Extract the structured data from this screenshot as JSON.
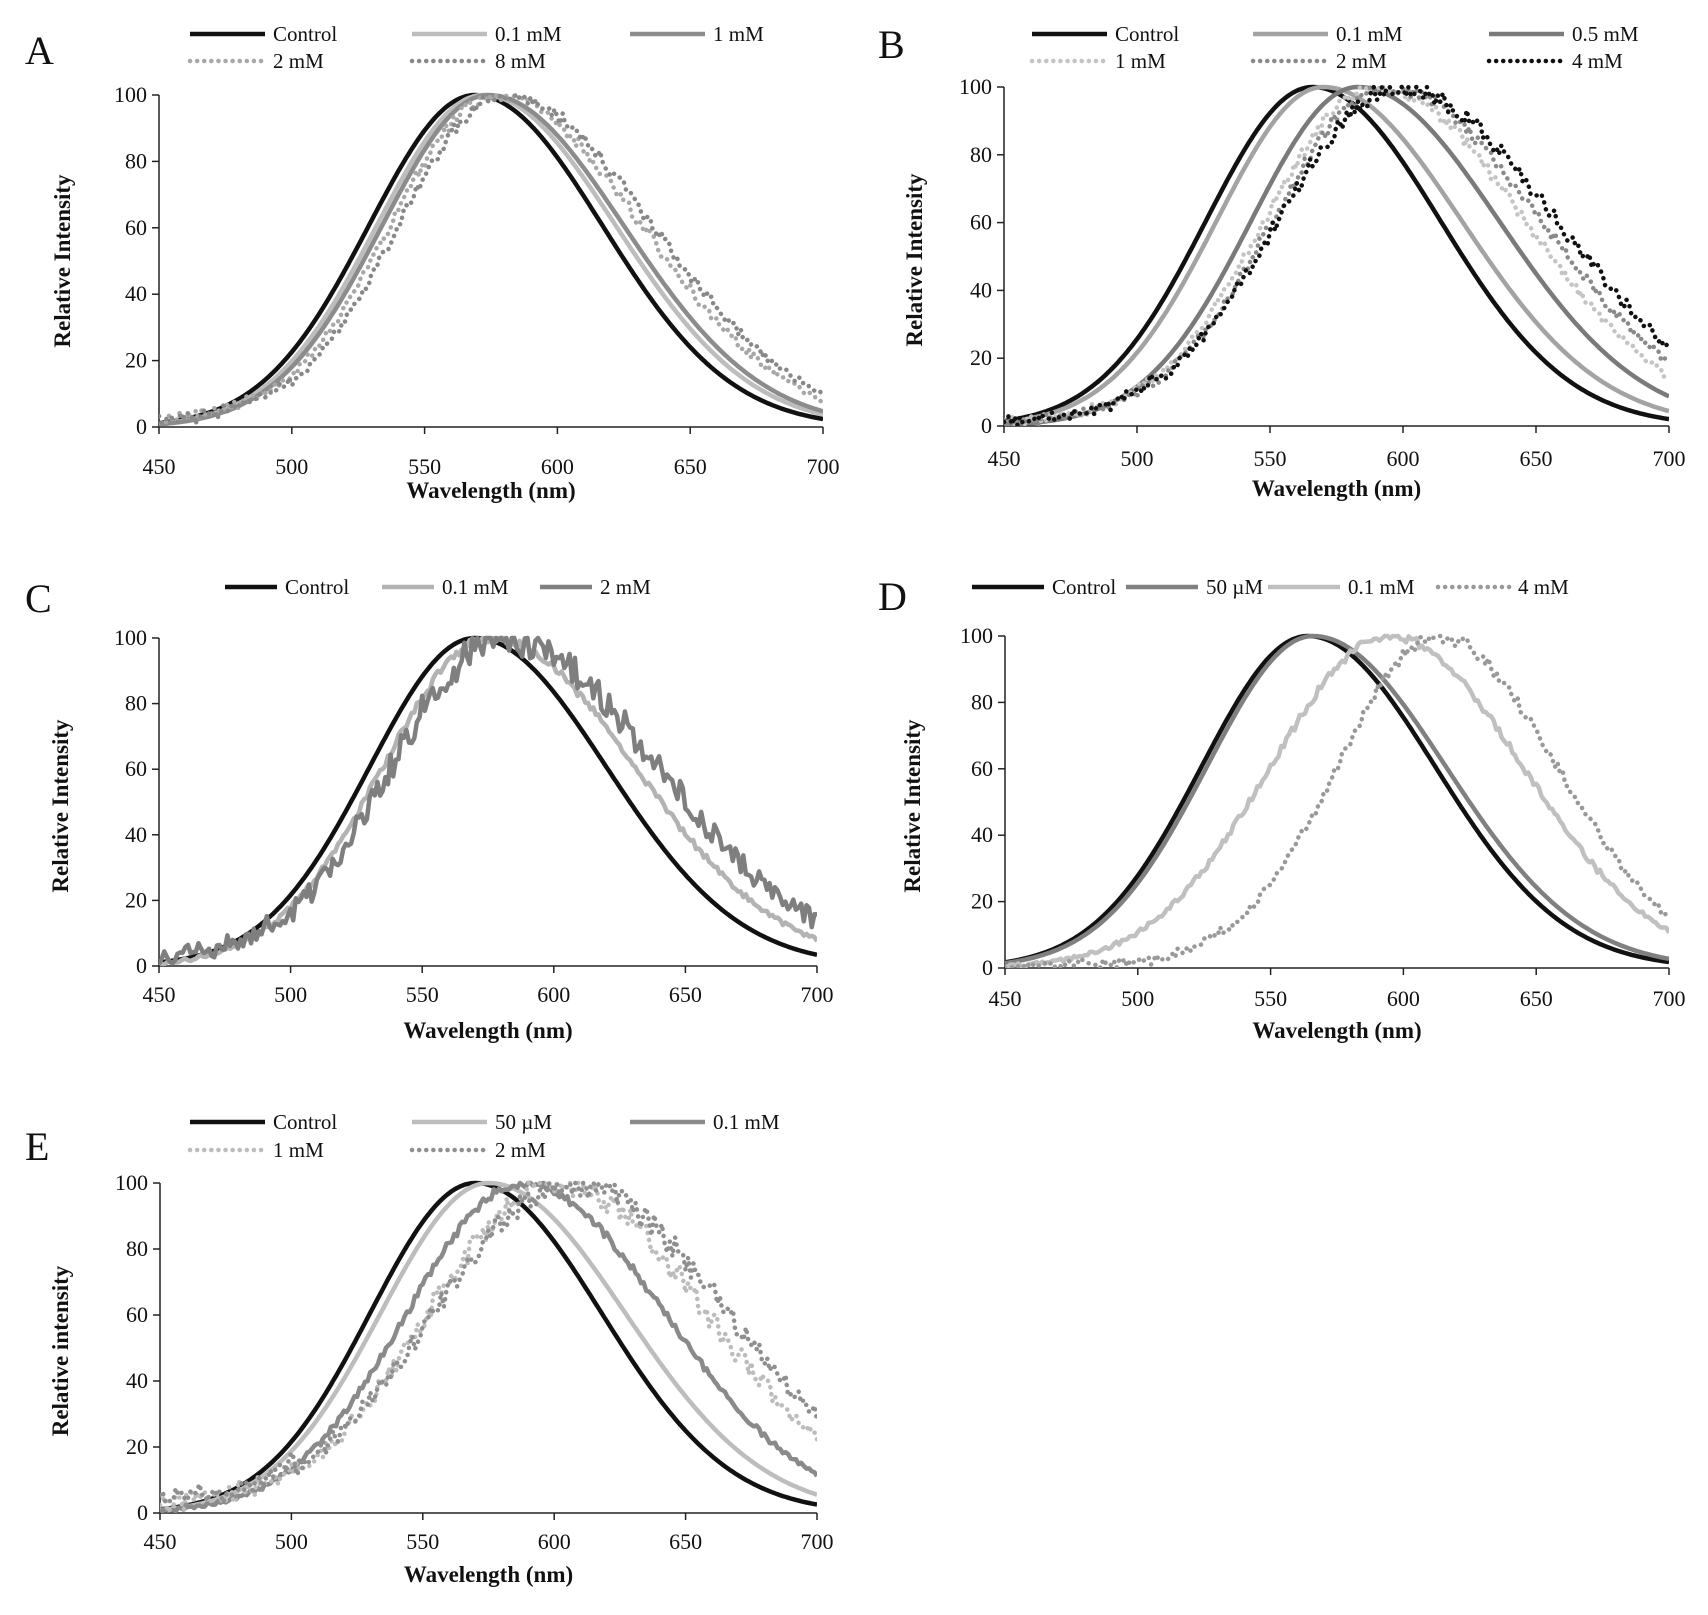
{
  "figure": {
    "background": "#ffffff"
  },
  "chart_data": [
    {
      "panel": "A",
      "type": "line",
      "xlabel": "Wavelength (nm)",
      "ylabel": "Relative Intensity",
      "xlim": [
        450,
        700
      ],
      "ylim": [
        0,
        100
      ],
      "xticks": [
        450,
        500,
        550,
        600,
        650,
        700
      ],
      "yticks": [
        0,
        20,
        40,
        60,
        80,
        100
      ],
      "legend_rows": [
        [
          "Control",
          "0.1 mM",
          "1 mM"
        ],
        [
          "2 mM",
          "8 mM"
        ]
      ],
      "series": [
        {
          "name": "Control",
          "color": "#111111",
          "style": "solid",
          "width": 4.5,
          "peak": 569,
          "wl": 40,
          "wr": 48,
          "noise": 0
        },
        {
          "name": "0.1 mM",
          "color": "#bdbdbd",
          "style": "solid",
          "width": 4.5,
          "peak": 572,
          "wl": 40,
          "wr": 50,
          "noise": 0
        },
        {
          "name": "1 mM",
          "color": "#8c8c8c",
          "style": "solid",
          "width": 4.5,
          "peak": 574,
          "wl": 40,
          "wr": 51,
          "noise": 0
        },
        {
          "name": "2 mM",
          "color": "#a8a8a8",
          "style": "dotted",
          "width": 4,
          "peak": 577,
          "wl": 40,
          "wr": 55,
          "noise": 1.5,
          "floor": 3
        },
        {
          "name": "8 mM",
          "color": "#888888",
          "style": "dotted",
          "width": 4,
          "peak": 580,
          "wl": 40,
          "wr": 56,
          "noise": 1.5,
          "floor": 3
        }
      ]
    },
    {
      "panel": "B",
      "type": "line",
      "xlabel": "Wavelength (nm)",
      "ylabel": "Relative Intensity",
      "xlim": [
        450,
        700
      ],
      "ylim": [
        0,
        100
      ],
      "xticks": [
        450,
        500,
        550,
        600,
        650,
        700
      ],
      "yticks": [
        0,
        20,
        40,
        60,
        80,
        100
      ],
      "legend_rows": [
        [
          "Control",
          "0.1 mM",
          "0.5 mM"
        ],
        [
          "1 mM",
          "2 mM",
          "4 mM"
        ]
      ],
      "series": [
        {
          "name": "Control",
          "color": "#111111",
          "style": "solid",
          "width": 4.5,
          "peak": 566,
          "wl": 40,
          "wr": 48,
          "noise": 0
        },
        {
          "name": "0.1 mM",
          "color": "#a3a3a3",
          "style": "solid",
          "width": 4.5,
          "peak": 570,
          "wl": 40,
          "wr": 52,
          "noise": 0
        },
        {
          "name": "0.5 mM",
          "color": "#7a7a7a",
          "style": "solid",
          "width": 4.5,
          "peak": 583,
          "wl": 40,
          "wr": 53,
          "noise": 0
        },
        {
          "name": "1 mM",
          "color": "#c4c4c4",
          "style": "dotted",
          "width": 4,
          "peak": 590,
          "wl": 42,
          "wr": 56,
          "noise": 1.5,
          "floor": 2
        },
        {
          "name": "2 mM",
          "color": "#8a8a8a",
          "style": "dotted",
          "width": 4,
          "peak": 594,
          "wl": 43,
          "wr": 58,
          "noise": 1.5,
          "floor": 2
        },
        {
          "name": "4 mM",
          "color": "#111111",
          "style": "dotted",
          "width": 4,
          "peak": 598,
          "wl": 45,
          "wr": 60,
          "noise": 2,
          "floor": 2
        }
      ]
    },
    {
      "panel": "C",
      "type": "line",
      "xlabel": "Wavelength (nm)",
      "ylabel": "Relative Intensity",
      "xlim": [
        450,
        700
      ],
      "ylim": [
        0,
        100
      ],
      "xticks": [
        450,
        500,
        550,
        600,
        650,
        700
      ],
      "yticks": [
        0,
        20,
        40,
        60,
        80,
        100
      ],
      "legend_rows": [
        [
          "Control",
          "0.1 mM",
          "2 mM"
        ]
      ],
      "series": [
        {
          "name": "Control",
          "color": "#111111",
          "style": "solid",
          "width": 4.5,
          "peak": 570,
          "wl": 40,
          "wr": 50,
          "noise": 0
        },
        {
          "name": "0.1 mM",
          "color": "#b3b3b3",
          "style": "solid",
          "width": 4.5,
          "peak": 576,
          "wl": 41,
          "wr": 55,
          "noise": 1
        },
        {
          "name": "2 mM",
          "color": "#7f7f7f",
          "style": "solid",
          "width": 4.5,
          "peak": 580,
          "wl": 42,
          "wr": 60,
          "noise": 4,
          "floor": 3
        }
      ]
    },
    {
      "panel": "D",
      "type": "line",
      "xlabel": "Wavelength (nm)",
      "ylabel": "Relative Intensity",
      "xlim": [
        450,
        700
      ],
      "ylim": [
        0,
        100
      ],
      "xticks": [
        450,
        500,
        550,
        600,
        650,
        700
      ],
      "yticks": [
        0,
        20,
        40,
        60,
        80,
        100
      ],
      "legend_rows": [
        [
          "Control",
          "50 µM",
          "0.1 mM",
          "4 mM"
        ]
      ],
      "series": [
        {
          "name": "Control",
          "color": "#111111",
          "style": "solid",
          "width": 4.5,
          "peak": 564,
          "wl": 40,
          "wr": 48,
          "noise": 0
        },
        {
          "name": "50 µM",
          "color": "#808080",
          "style": "solid",
          "width": 4.5,
          "peak": 566,
          "wl": 40,
          "wr": 50,
          "noise": 0
        },
        {
          "name": "0.1 mM",
          "color": "#c0c0c0",
          "style": "solid",
          "width": 4.5,
          "peak": 595,
          "wl": 45,
          "wr": 50,
          "noise": 1
        },
        {
          "name": "4 mM",
          "color": "#999999",
          "style": "dotted",
          "width": 4,
          "peak": 613,
          "wl": 38,
          "wr": 45,
          "noise": 1.5,
          "floor": 2
        }
      ]
    },
    {
      "panel": "E",
      "type": "line",
      "xlabel": "Wavelength (nm)",
      "ylabel": "Relative intensity",
      "xlim": [
        450,
        700
      ],
      "ylim": [
        0,
        100
      ],
      "xticks": [
        450,
        500,
        550,
        600,
        650,
        700
      ],
      "yticks": [
        0,
        20,
        40,
        60,
        80,
        100
      ],
      "legend_rows": [
        [
          "Control",
          "50 µM",
          "0.1 mM"
        ],
        [
          "1 mM",
          "2 mM"
        ]
      ],
      "series": [
        {
          "name": "Control",
          "color": "#111111",
          "style": "solid",
          "width": 4.5,
          "peak": 570,
          "wl": 40,
          "wr": 48,
          "noise": 0
        },
        {
          "name": "50 µM",
          "color": "#bdbdbd",
          "style": "solid",
          "width": 4.5,
          "peak": 575,
          "wl": 41,
          "wr": 52,
          "noise": 0
        },
        {
          "name": "0.1 mM",
          "color": "#8a8a8a",
          "style": "solid",
          "width": 4.5,
          "peak": 588,
          "wl": 44,
          "wr": 54,
          "noise": 1
        },
        {
          "name": "1 mM",
          "color": "#bcbcbc",
          "style": "dotted",
          "width": 4,
          "peak": 600,
          "wl": 48,
          "wr": 58,
          "noise": 3,
          "floor": 4
        },
        {
          "name": "2 mM",
          "color": "#8f8f8f",
          "style": "dotted",
          "width": 4,
          "peak": 606,
          "wl": 52,
          "wr": 60,
          "noise": 3,
          "floor": 5
        }
      ]
    }
  ]
}
